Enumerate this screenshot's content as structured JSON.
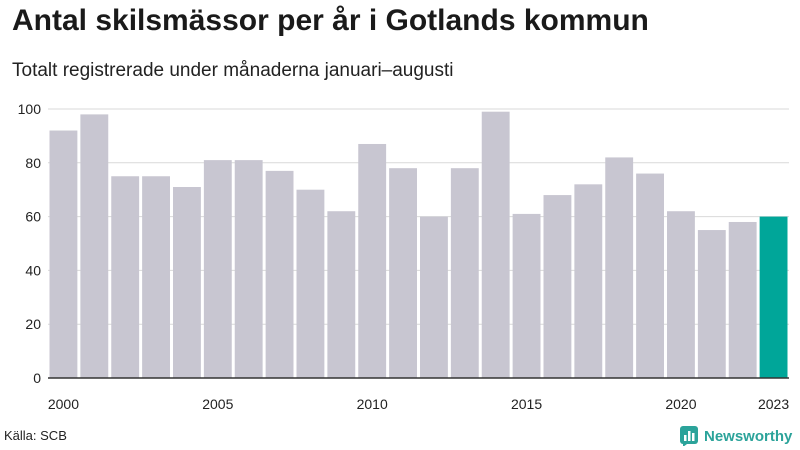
{
  "title": "Antal skilsmässor per år i Gotlands kommun",
  "subtitle": "Totalt registrerade under månaderna januari–augusti",
  "source": "Källa: SCB",
  "brand": {
    "name": "Newsworthy",
    "icon": "newsworthy-logo-icon"
  },
  "colors": {
    "bar": "#c8c6d1",
    "highlight": "#00a699",
    "grid": "#d9d9d9",
    "axis": "#333333",
    "brand": "#2ba39a"
  },
  "chart_data": {
    "type": "bar",
    "title": "Antal skilsmässor per år i Gotlands kommun",
    "xlabel": "",
    "ylabel": "",
    "ylim": [
      0,
      100
    ],
    "yticks": [
      0,
      20,
      40,
      60,
      80,
      100
    ],
    "x_tick_labels": [
      "2000",
      "2005",
      "2010",
      "2015",
      "2020",
      "2023"
    ],
    "categories": [
      "2000",
      "2001",
      "2002",
      "2003",
      "2004",
      "2005",
      "2006",
      "2007",
      "2008",
      "2009",
      "2010",
      "2011",
      "2012",
      "2013",
      "2014",
      "2015",
      "2016",
      "2017",
      "2018",
      "2019",
      "2020",
      "2021",
      "2022",
      "2023"
    ],
    "values": [
      92,
      98,
      75,
      75,
      71,
      81,
      81,
      77,
      70,
      62,
      87,
      78,
      60,
      78,
      99,
      61,
      68,
      72,
      82,
      76,
      62,
      55,
      58,
      60
    ],
    "highlight": "2023",
    "grid": true
  }
}
